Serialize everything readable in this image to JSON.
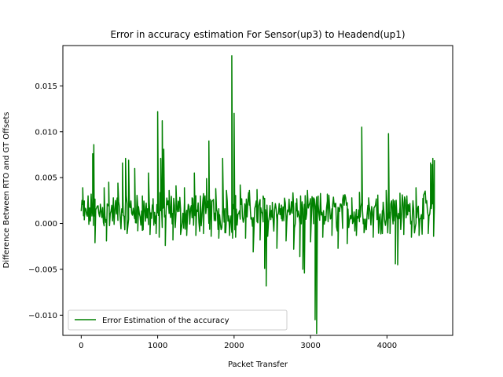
{
  "chart_data": {
    "type": "line",
    "title": "Error in accuracy estimation For Sensor(up3) to Headend(up1)",
    "xlabel": "Packet Transfer",
    "ylabel": "Difference Between RTO and GT Offsets",
    "xlim": [
      -240,
      4860
    ],
    "ylim": [
      -0.0122,
      0.0194
    ],
    "x_ticks": [
      0,
      1000,
      2000,
      3000,
      4000
    ],
    "x_tick_labels": [
      "0",
      "1000",
      "2000",
      "3000",
      "4000"
    ],
    "y_ticks": [
      -0.01,
      -0.005,
      0.0,
      0.005,
      0.01,
      0.015
    ],
    "y_tick_labels": [
      "−0.010",
      "−0.005",
      "0.000",
      "0.005",
      "0.010",
      "0.015"
    ],
    "grid": false,
    "legend_position": "lower-left",
    "series": [
      {
        "name": "Error Estimation of the accuracy",
        "color": "#008000",
        "x_start": 0,
        "x_end": 4620,
        "baseline": 0.0012,
        "spikes": [
          {
            "x": 20,
            "y": 0.0039
          },
          {
            "x": 40,
            "y": 0.0004
          },
          {
            "x": 150,
            "y": 0.0076
          },
          {
            "x": 165,
            "y": 0.0086
          },
          {
            "x": 180,
            "y": -0.0021
          },
          {
            "x": 250,
            "y": 0.0021
          },
          {
            "x": 300,
            "y": 0.0039
          },
          {
            "x": 330,
            "y": -0.0019
          },
          {
            "x": 360,
            "y": 0.0045
          },
          {
            "x": 420,
            "y": 0.0028
          },
          {
            "x": 480,
            "y": 0.0044
          },
          {
            "x": 540,
            "y": 0.0066
          },
          {
            "x": 580,
            "y": 0.0071
          },
          {
            "x": 600,
            "y": -0.0011
          },
          {
            "x": 620,
            "y": 0.0069
          },
          {
            "x": 700,
            "y": 0.006
          },
          {
            "x": 740,
            "y": -0.0008
          },
          {
            "x": 800,
            "y": 0.003
          },
          {
            "x": 880,
            "y": 0.0055
          },
          {
            "x": 900,
            "y": -0.0012
          },
          {
            "x": 940,
            "y": 0.0027
          },
          {
            "x": 980,
            "y": -0.0011
          },
          {
            "x": 1000,
            "y": 0.0122
          },
          {
            "x": 1020,
            "y": -0.0015
          },
          {
            "x": 1040,
            "y": 0.0071
          },
          {
            "x": 1060,
            "y": 0.0112
          },
          {
            "x": 1080,
            "y": 0.0081
          },
          {
            "x": 1100,
            "y": -0.0024
          },
          {
            "x": 1150,
            "y": 0.0036
          },
          {
            "x": 1200,
            "y": -0.0018
          },
          {
            "x": 1240,
            "y": 0.0041
          },
          {
            "x": 1300,
            "y": -0.0012
          },
          {
            "x": 1350,
            "y": 0.0039
          },
          {
            "x": 1380,
            "y": -0.0013
          },
          {
            "x": 1450,
            "y": 0.0028
          },
          {
            "x": 1480,
            "y": 0.0055
          },
          {
            "x": 1500,
            "y": -0.0013
          },
          {
            "x": 1560,
            "y": 0.003
          },
          {
            "x": 1600,
            "y": -0.0011
          },
          {
            "x": 1640,
            "y": 0.0049
          },
          {
            "x": 1670,
            "y": 0.009
          },
          {
            "x": 1700,
            "y": -0.0014
          },
          {
            "x": 1760,
            "y": 0.0038
          },
          {
            "x": 1800,
            "y": -0.0016
          },
          {
            "x": 1850,
            "y": 0.0071
          },
          {
            "x": 1880,
            "y": -0.001
          },
          {
            "x": 1900,
            "y": 0.0036
          },
          {
            "x": 1940,
            "y": -0.0013
          },
          {
            "x": 1970,
            "y": 0.0183
          },
          {
            "x": 1980,
            "y": -0.0016
          },
          {
            "x": 2000,
            "y": 0.012
          },
          {
            "x": 2020,
            "y": -0.0015
          },
          {
            "x": 2080,
            "y": 0.0042
          },
          {
            "x": 2150,
            "y": -0.0016
          },
          {
            "x": 2200,
            "y": 0.0036
          },
          {
            "x": 2250,
            "y": -0.0031
          },
          {
            "x": 2300,
            "y": 0.0037
          },
          {
            "x": 2340,
            "y": -0.0018
          },
          {
            "x": 2380,
            "y": 0.003
          },
          {
            "x": 2400,
            "y": -0.0049
          },
          {
            "x": 2420,
            "y": -0.0068
          },
          {
            "x": 2440,
            "y": -0.0014
          },
          {
            "x": 2500,
            "y": 0.0023
          },
          {
            "x": 2560,
            "y": -0.0027
          },
          {
            "x": 2620,
            "y": 0.002
          },
          {
            "x": 2680,
            "y": -0.0019
          },
          {
            "x": 2720,
            "y": 0.0024
          },
          {
            "x": 2780,
            "y": -0.0028
          },
          {
            "x": 2820,
            "y": 0.0027
          },
          {
            "x": 2860,
            "y": -0.0036
          },
          {
            "x": 2900,
            "y": -0.005
          },
          {
            "x": 2920,
            "y": -0.0054
          },
          {
            "x": 2960,
            "y": 0.0035
          },
          {
            "x": 3000,
            "y": -0.002
          },
          {
            "x": 3040,
            "y": 0.0028
          },
          {
            "x": 3060,
            "y": -0.0105
          },
          {
            "x": 3080,
            "y": -0.012
          },
          {
            "x": 3100,
            "y": 0.0021
          },
          {
            "x": 3160,
            "y": -0.0015
          },
          {
            "x": 3220,
            "y": 0.0032
          },
          {
            "x": 3280,
            "y": -0.0013
          },
          {
            "x": 3320,
            "y": 0.0018
          },
          {
            "x": 3360,
            "y": -0.0027
          },
          {
            "x": 3420,
            "y": 0.0026
          },
          {
            "x": 3480,
            "y": -0.0022
          },
          {
            "x": 3540,
            "y": 0.0028
          },
          {
            "x": 3600,
            "y": -0.0013
          },
          {
            "x": 3640,
            "y": 0.0034
          },
          {
            "x": 3670,
            "y": 0.0105
          },
          {
            "x": 3700,
            "y": -0.001
          },
          {
            "x": 3760,
            "y": 0.0028
          },
          {
            "x": 3820,
            "y": -0.0015
          },
          {
            "x": 3880,
            "y": 0.0031
          },
          {
            "x": 3940,
            "y": -0.0011
          },
          {
            "x": 3990,
            "y": 0.0036
          },
          {
            "x": 4020,
            "y": 0.0098
          },
          {
            "x": 4040,
            "y": -0.0011
          },
          {
            "x": 4080,
            "y": 0.0026
          },
          {
            "x": 4110,
            "y": -0.0044
          },
          {
            "x": 4140,
            "y": -0.0045
          },
          {
            "x": 4170,
            "y": 0.0033
          },
          {
            "x": 4220,
            "y": -0.0012
          },
          {
            "x": 4260,
            "y": 0.003
          },
          {
            "x": 4320,
            "y": -0.0015
          },
          {
            "x": 4380,
            "y": 0.0039
          },
          {
            "x": 4420,
            "y": -0.0013
          },
          {
            "x": 4480,
            "y": 0.0031
          },
          {
            "x": 4540,
            "y": -0.0011
          },
          {
            "x": 4570,
            "y": 0.0066
          },
          {
            "x": 4590,
            "y": 0.0064
          },
          {
            "x": 4600,
            "y": 0.0071
          },
          {
            "x": 4610,
            "y": -0.0014
          },
          {
            "x": 4620,
            "y": 0.0069
          }
        ]
      }
    ]
  }
}
